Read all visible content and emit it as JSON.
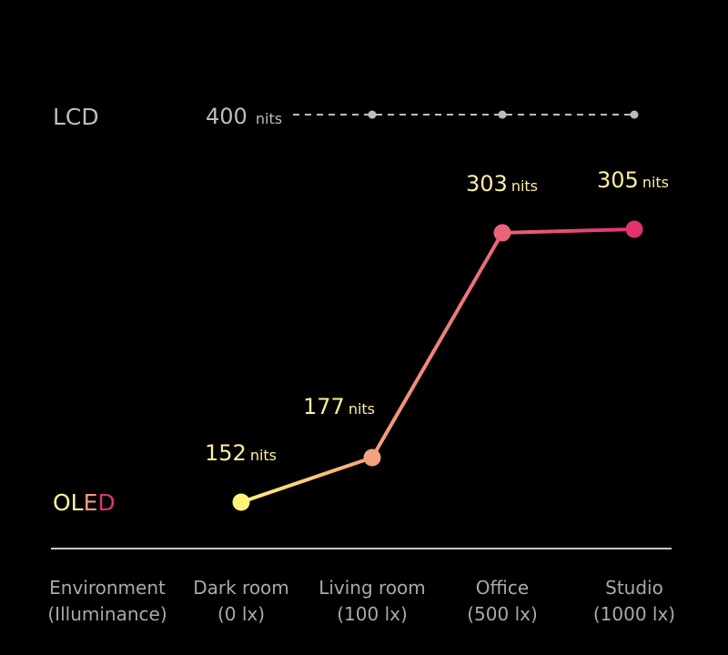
{
  "chart_data": {
    "type": "line",
    "x_header": [
      "Environment",
      "(Illuminance)"
    ],
    "categories": [
      {
        "name": "Dark room",
        "illuminance": "(0 lx)"
      },
      {
        "name": "Living room",
        "illuminance": "(100 lx)"
      },
      {
        "name": "Office",
        "illuminance": "(500 lx)"
      },
      {
        "name": "Studio",
        "illuminance": "(1000 lx)"
      }
    ],
    "series": [
      {
        "name": "LCD",
        "values": [
          400,
          400,
          400,
          400
        ],
        "style": "dashed",
        "value_label": "400",
        "unit": "nits",
        "color": "#bdbdbd"
      },
      {
        "name": "OLED",
        "values": [
          152,
          177,
          303,
          305
        ],
        "style": "solid-gradient",
        "unit": "nits",
        "point_colors": [
          "#fff27a",
          "#f4a27c",
          "#e9647a",
          "#e2336f"
        ]
      }
    ],
    "oled_label_parts": [
      {
        "text": "OL",
        "color": "#fff4a2"
      },
      {
        "text": "E",
        "color": "#f19a80"
      },
      {
        "text": "D",
        "color": "#e0336f"
      }
    ],
    "colors": {
      "background": "#000000",
      "axis_line": "#c8c8c8",
      "value_text": "#ffeea0",
      "axis_text": "#a9a9a9"
    }
  }
}
